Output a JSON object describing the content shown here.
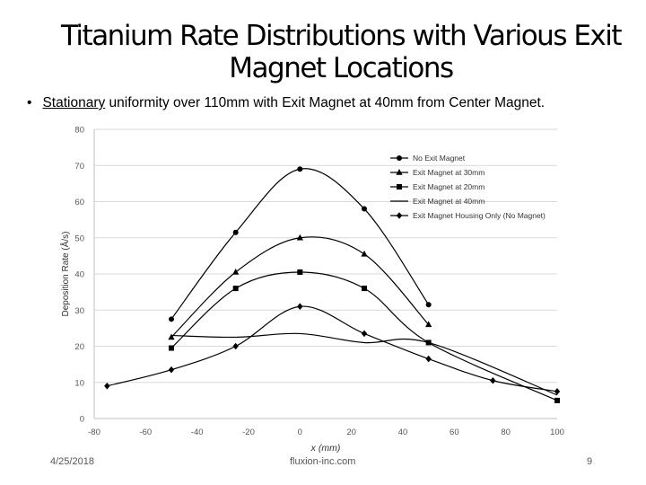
{
  "slide": {
    "title_line1": "Titanium Rate Distributions with Various Exit",
    "title_line2": "Magnet Locations",
    "bullet_symbol": "•",
    "bullet_underlined": "Stationary",
    "bullet_rest": " uniformity over 110mm with Exit Magnet at 40mm from Center Magnet.",
    "footer_date": "4/25/2018",
    "footer_site": "fluxion-inc.com",
    "footer_page": "9"
  },
  "chart_data": {
    "type": "line",
    "title": "",
    "xlabel": "x (mm)",
    "ylabel": "Deposition Rate (Å/s)",
    "xlim": [
      -80,
      100
    ],
    "ylim": [
      0,
      80
    ],
    "xticks": [
      -80,
      -60,
      -40,
      -20,
      0,
      20,
      40,
      60,
      80,
      100
    ],
    "yticks": [
      0,
      10,
      20,
      30,
      40,
      50,
      60,
      70,
      80
    ],
    "legend_position": "top-right",
    "series": [
      {
        "name": "No Exit Magnet",
        "marker": "circle",
        "x": [
          -50,
          -25,
          0,
          25,
          50
        ],
        "y": [
          27.5,
          51.5,
          69,
          58,
          31.5
        ]
      },
      {
        "name": "Exit Magnet at 30mm",
        "marker": "triangle",
        "x": [
          -50,
          -25,
          0,
          25,
          50
        ],
        "y": [
          22.5,
          40.5,
          50,
          45.5,
          26
        ]
      },
      {
        "name": "Exit Magnet at 20mm",
        "marker": "square",
        "x": [
          -50,
          -25,
          0,
          25,
          50,
          100
        ],
        "y": [
          19.5,
          36,
          40.5,
          36,
          21,
          5
        ]
      },
      {
        "name": "Exit Magnet at 40mm",
        "marker": "none",
        "x": [
          -50,
          -25,
          0,
          25,
          50,
          100
        ],
        "y": [
          23,
          22.5,
          23.5,
          21,
          21,
          6.5
        ]
      },
      {
        "name": "Exit Magnet Housing Only (No Magnet)",
        "marker": "diamond",
        "x": [
          -75,
          -50,
          -25,
          0,
          25,
          50,
          75,
          100
        ],
        "y": [
          9,
          13.5,
          20,
          31,
          23.5,
          16.5,
          10.5,
          7.5
        ]
      }
    ]
  }
}
